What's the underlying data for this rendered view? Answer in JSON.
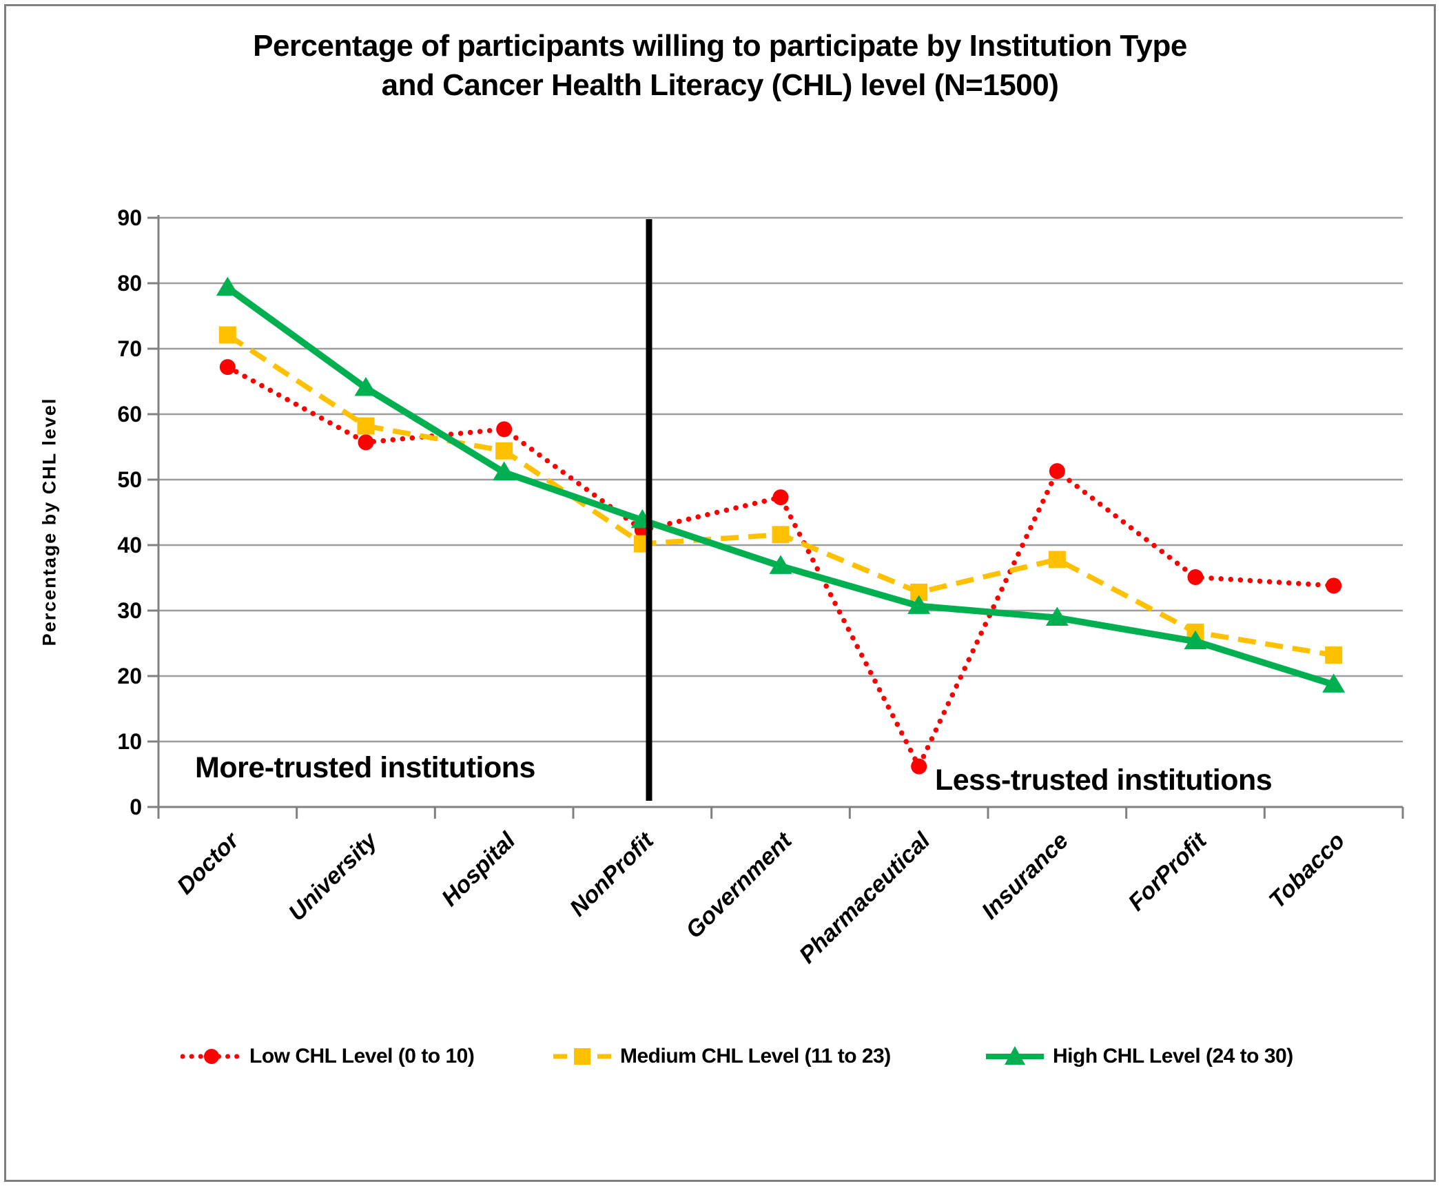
{
  "title": {
    "line1": "Percentage of participants willing to participate by Institution  Type",
    "line2": "and Cancer Health Literacy (CHL) level (N=1500)"
  },
  "y_axis_label": "Percentage by CHL level",
  "chart_data": {
    "type": "line",
    "categories": [
      "Doctor",
      "University",
      "Hospital",
      "NonProfit",
      "Government",
      "Pharmaceutical",
      "Insurance",
      "ForProfit",
      "Tobacco"
    ],
    "series": [
      {
        "name": "Low CHL Level (0 to 10)",
        "color": "#FF0000",
        "line_style": "dotted",
        "marker": "circle",
        "values": [
          67.2,
          55.7,
          57.7,
          42.3,
          47.3,
          6.2,
          51.3,
          35.1,
          33.8
        ]
      },
      {
        "name": "Medium CHL Level (11 to 23)",
        "color": "#FFC000",
        "line_style": "dashed",
        "marker": "square",
        "values": [
          72.1,
          58.2,
          54.4,
          40.2,
          41.6,
          32.8,
          37.8,
          26.7,
          23.2
        ]
      },
      {
        "name": "High CHL Level (24 to 30)",
        "color": "#00B050",
        "line_style": "solid",
        "marker": "triangle",
        "values": [
          79.3,
          64.0,
          51.1,
          43.8,
          36.8,
          30.7,
          28.9,
          25.3,
          18.7
        ]
      }
    ],
    "ylim": [
      0,
      90
    ],
    "yticks": [
      0,
      10,
      20,
      30,
      40,
      50,
      60,
      70,
      80,
      90
    ],
    "grid": true,
    "legend_position": "bottom",
    "divider_after_category": "NonProfit",
    "annotations": {
      "more": "More-trusted institutions",
      "less": "Less-trusted institutions"
    }
  },
  "colors": {
    "gridline": "#9c9c9c",
    "axis": "#808080",
    "divider": "#000000",
    "frame_border": "#7f7f7f",
    "text": "#000000"
  }
}
